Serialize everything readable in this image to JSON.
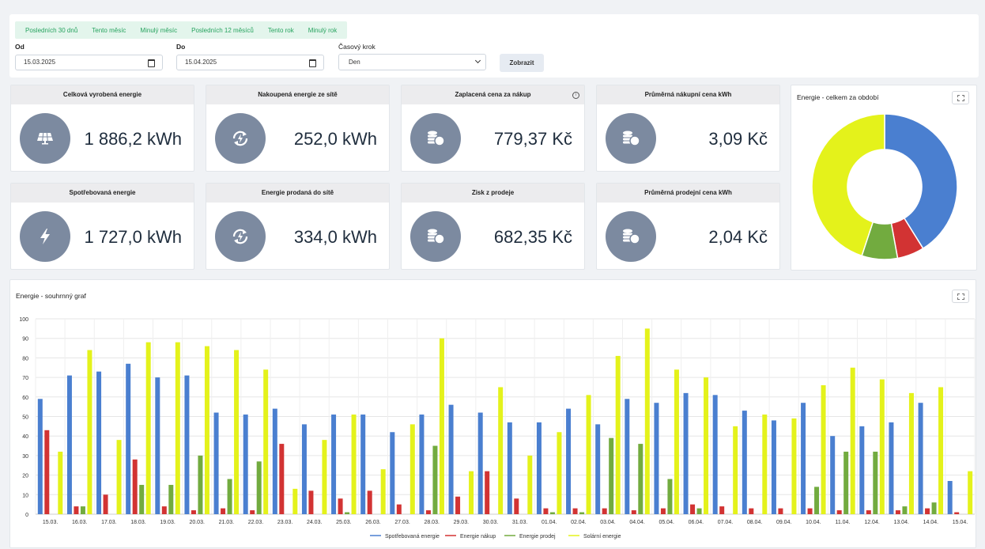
{
  "filters": {
    "presets": [
      "Posledních 30 dnů",
      "Tento měsíc",
      "Minulý měsíc",
      "Posledních 12 měsíců",
      "Tento rok",
      "Minulý rok"
    ],
    "from_label": "Od",
    "from_value": "15.03.2025",
    "to_label": "Do",
    "to_value": "15.04.2025",
    "step_label": "Časový krok",
    "step_value": "Den",
    "show_button": "Zobrazit"
  },
  "cards": [
    {
      "title": "Celková vyrobená energie",
      "value": "1 886,2 kWh",
      "icon": "solar-panel-icon"
    },
    {
      "title": "Nakoupená energie ze sítě",
      "value": "252,0 kWh",
      "icon": "grid-sync-icon"
    },
    {
      "title": "Zaplacená cena za nákup",
      "value": "779,37 Kč",
      "icon": "coins-icon",
      "info": "i"
    },
    {
      "title": "Průměrná nákupní cena kWh",
      "value": "3,09 Kč",
      "icon": "coins-icon"
    },
    {
      "title": "Spotřebovaná energie",
      "value": "1 727,0 kWh",
      "icon": "lightning-icon"
    },
    {
      "title": "Energie prodaná do sítě",
      "value": "334,0 kWh",
      "icon": "grid-sync-icon"
    },
    {
      "title": "Zisk z prodeje",
      "value": "682,35 Kč",
      "icon": "coins-icon"
    },
    {
      "title": "Průměrná prodejní cena kWh",
      "value": "2,04 Kč",
      "icon": "coins-icon"
    }
  ],
  "donut_panel": {
    "title": "Energie - celkem za období"
  },
  "bar_panel": {
    "title": "Energie - souhrnný graf"
  },
  "colors": {
    "consumed": "#4a7fd0",
    "bought": "#d23333",
    "sold": "#72ab3f",
    "solar": "#e4f21b",
    "icon_bg": "#7c8aa0",
    "preset_text": "#27a35f"
  },
  "chart_data": [
    {
      "type": "pie",
      "categories": [
        "Spotřebovaná energie",
        "Energie nákup",
        "Energie prodej",
        "Solární energie"
      ],
      "values": [
        1727.0,
        252.0,
        334.0,
        1886.2
      ]
    },
    {
      "type": "bar",
      "categories": [
        "15.03.",
        "16.03.",
        "17.03.",
        "18.03.",
        "19.03.",
        "20.03.",
        "21.03.",
        "22.03.",
        "23.03.",
        "24.03.",
        "25.03.",
        "26.03.",
        "27.03.",
        "28.03.",
        "29.03.",
        "30.03.",
        "31.03.",
        "01.04.",
        "02.04.",
        "03.04.",
        "04.04.",
        "05.04.",
        "06.04.",
        "07.04.",
        "08.04.",
        "09.04.",
        "10.04.",
        "11.04.",
        "12.04.",
        "13.04.",
        "14.04.",
        "15.04."
      ],
      "ylim": [
        0,
        100
      ],
      "yticks": [
        0,
        10,
        20,
        30,
        40,
        50,
        60,
        70,
        80,
        90,
        100
      ],
      "grid": true,
      "legend_position": "bottom",
      "series": [
        {
          "name": "Spotřebovaná energie",
          "values": [
            59,
            71,
            73,
            77,
            70,
            71,
            52,
            51,
            54,
            46,
            51,
            51,
            42,
            51,
            56,
            52,
            47,
            47,
            54,
            46,
            59,
            57,
            62,
            61,
            53,
            48,
            57,
            40,
            45,
            47,
            57,
            17
          ]
        },
        {
          "name": "Energie nákup",
          "values": [
            43,
            4,
            10,
            28,
            4,
            2,
            3,
            2,
            36,
            12,
            8,
            12,
            5,
            2,
            9,
            22,
            8,
            3,
            3,
            3,
            2,
            3,
            5,
            4,
            3,
            3,
            3,
            2,
            2,
            2,
            3,
            1
          ]
        },
        {
          "name": "Energie prodej",
          "values": [
            0,
            4,
            0,
            15,
            15,
            30,
            18,
            27,
            0,
            0,
            1,
            0,
            0,
            35,
            0,
            0,
            0,
            1,
            1,
            39,
            36,
            18,
            3,
            0,
            0,
            0,
            14,
            32,
            32,
            4,
            6,
            0
          ]
        },
        {
          "name": "Solární energie",
          "values": [
            32,
            84,
            38,
            88,
            88,
            86,
            84,
            74,
            13,
            38,
            51,
            23,
            46,
            90,
            22,
            65,
            30,
            42,
            61,
            81,
            95,
            74,
            70,
            45,
            51,
            49,
            66,
            75,
            69,
            62,
            65,
            22
          ]
        }
      ]
    }
  ]
}
